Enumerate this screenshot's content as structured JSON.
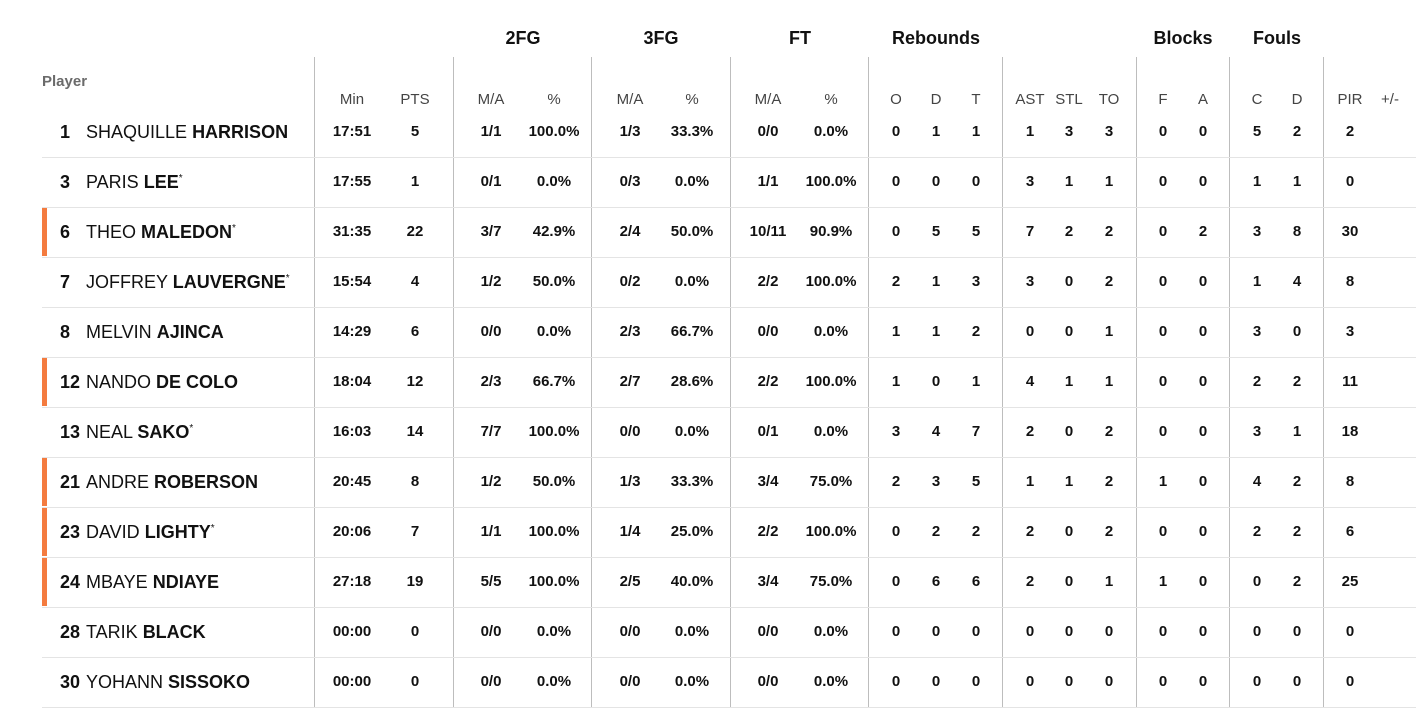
{
  "headers": {
    "player": "Player",
    "groups": [
      "2FG",
      "3FG",
      "FT",
      "Rebounds",
      "Blocks",
      "Fouls"
    ],
    "columns": [
      "Min",
      "PTS",
      "M/A",
      "%",
      "M/A",
      "%",
      "M/A",
      "%",
      "O",
      "D",
      "T",
      "AST",
      "STL",
      "TO",
      "F",
      "A",
      "C",
      "D",
      "PIR",
      "+/-"
    ]
  },
  "highlight_color": "#f47b3f",
  "players": [
    {
      "number": "1",
      "first": "SHAQUILLE",
      "last": "HARRISON",
      "starter": "",
      "highlighted": false,
      "stats": [
        "17:51",
        "5",
        "1/1",
        "100.0%",
        "1/3",
        "33.3%",
        "0/0",
        "0.0%",
        "0",
        "1",
        "1",
        "1",
        "3",
        "3",
        "0",
        "0",
        "5",
        "2",
        "2",
        ""
      ]
    },
    {
      "number": "3",
      "first": "PARIS",
      "last": "LEE",
      "starter": "*",
      "highlighted": false,
      "stats": [
        "17:55",
        "1",
        "0/1",
        "0.0%",
        "0/3",
        "0.0%",
        "1/1",
        "100.0%",
        "0",
        "0",
        "0",
        "3",
        "1",
        "1",
        "0",
        "0",
        "1",
        "1",
        "0",
        ""
      ]
    },
    {
      "number": "6",
      "first": "THEO",
      "last": "MALEDON",
      "starter": "*",
      "highlighted": true,
      "stats": [
        "31:35",
        "22",
        "3/7",
        "42.9%",
        "2/4",
        "50.0%",
        "10/11",
        "90.9%",
        "0",
        "5",
        "5",
        "7",
        "2",
        "2",
        "0",
        "2",
        "3",
        "8",
        "30",
        ""
      ]
    },
    {
      "number": "7",
      "first": "JOFFREY",
      "last": "LAUVERGNE",
      "starter": "*",
      "highlighted": false,
      "stats": [
        "15:54",
        "4",
        "1/2",
        "50.0%",
        "0/2",
        "0.0%",
        "2/2",
        "100.0%",
        "2",
        "1",
        "3",
        "3",
        "0",
        "2",
        "0",
        "0",
        "1",
        "4",
        "8",
        ""
      ]
    },
    {
      "number": "8",
      "first": "MELVIN",
      "last": "AJINCA",
      "starter": "",
      "highlighted": false,
      "stats": [
        "14:29",
        "6",
        "0/0",
        "0.0%",
        "2/3",
        "66.7%",
        "0/0",
        "0.0%",
        "1",
        "1",
        "2",
        "0",
        "0",
        "1",
        "0",
        "0",
        "3",
        "0",
        "3",
        ""
      ]
    },
    {
      "number": "12",
      "first": "NANDO",
      "last": "DE COLO",
      "starter": "",
      "highlighted": true,
      "stats": [
        "18:04",
        "12",
        "2/3",
        "66.7%",
        "2/7",
        "28.6%",
        "2/2",
        "100.0%",
        "1",
        "0",
        "1",
        "4",
        "1",
        "1",
        "0",
        "0",
        "2",
        "2",
        "11",
        ""
      ]
    },
    {
      "number": "13",
      "first": "NEAL",
      "last": "SAKO",
      "starter": "*",
      "highlighted": false,
      "stats": [
        "16:03",
        "14",
        "7/7",
        "100.0%",
        "0/0",
        "0.0%",
        "0/1",
        "0.0%",
        "3",
        "4",
        "7",
        "2",
        "0",
        "2",
        "0",
        "0",
        "3",
        "1",
        "18",
        ""
      ]
    },
    {
      "number": "21",
      "first": "ANDRE",
      "last": "ROBERSON",
      "starter": "",
      "highlighted": true,
      "stats": [
        "20:45",
        "8",
        "1/2",
        "50.0%",
        "1/3",
        "33.3%",
        "3/4",
        "75.0%",
        "2",
        "3",
        "5",
        "1",
        "1",
        "2",
        "1",
        "0",
        "4",
        "2",
        "8",
        ""
      ]
    },
    {
      "number": "23",
      "first": "DAVID",
      "last": "LIGHTY",
      "starter": "*",
      "highlighted": true,
      "stats": [
        "20:06",
        "7",
        "1/1",
        "100.0%",
        "1/4",
        "25.0%",
        "2/2",
        "100.0%",
        "0",
        "2",
        "2",
        "2",
        "0",
        "2",
        "0",
        "0",
        "2",
        "2",
        "6",
        ""
      ]
    },
    {
      "number": "24",
      "first": "MBAYE",
      "last": "NDIAYE",
      "starter": "",
      "highlighted": true,
      "stats": [
        "27:18",
        "19",
        "5/5",
        "100.0%",
        "2/5",
        "40.0%",
        "3/4",
        "75.0%",
        "0",
        "6",
        "6",
        "2",
        "0",
        "1",
        "1",
        "0",
        "0",
        "2",
        "25",
        ""
      ]
    },
    {
      "number": "28",
      "first": "TARIK",
      "last": "BLACK",
      "starter": "",
      "highlighted": false,
      "stats": [
        "00:00",
        "0",
        "0/0",
        "0.0%",
        "0/0",
        "0.0%",
        "0/0",
        "0.0%",
        "0",
        "0",
        "0",
        "0",
        "0",
        "0",
        "0",
        "0",
        "0",
        "0",
        "0",
        ""
      ]
    },
    {
      "number": "30",
      "first": "YOHANN",
      "last": "SISSOKO",
      "starter": "",
      "highlighted": false,
      "stats": [
        "00:00",
        "0",
        "0/0",
        "0.0%",
        "0/0",
        "0.0%",
        "0/0",
        "0.0%",
        "0",
        "0",
        "0",
        "0",
        "0",
        "0",
        "0",
        "0",
        "0",
        "0",
        "0",
        ""
      ]
    }
  ]
}
